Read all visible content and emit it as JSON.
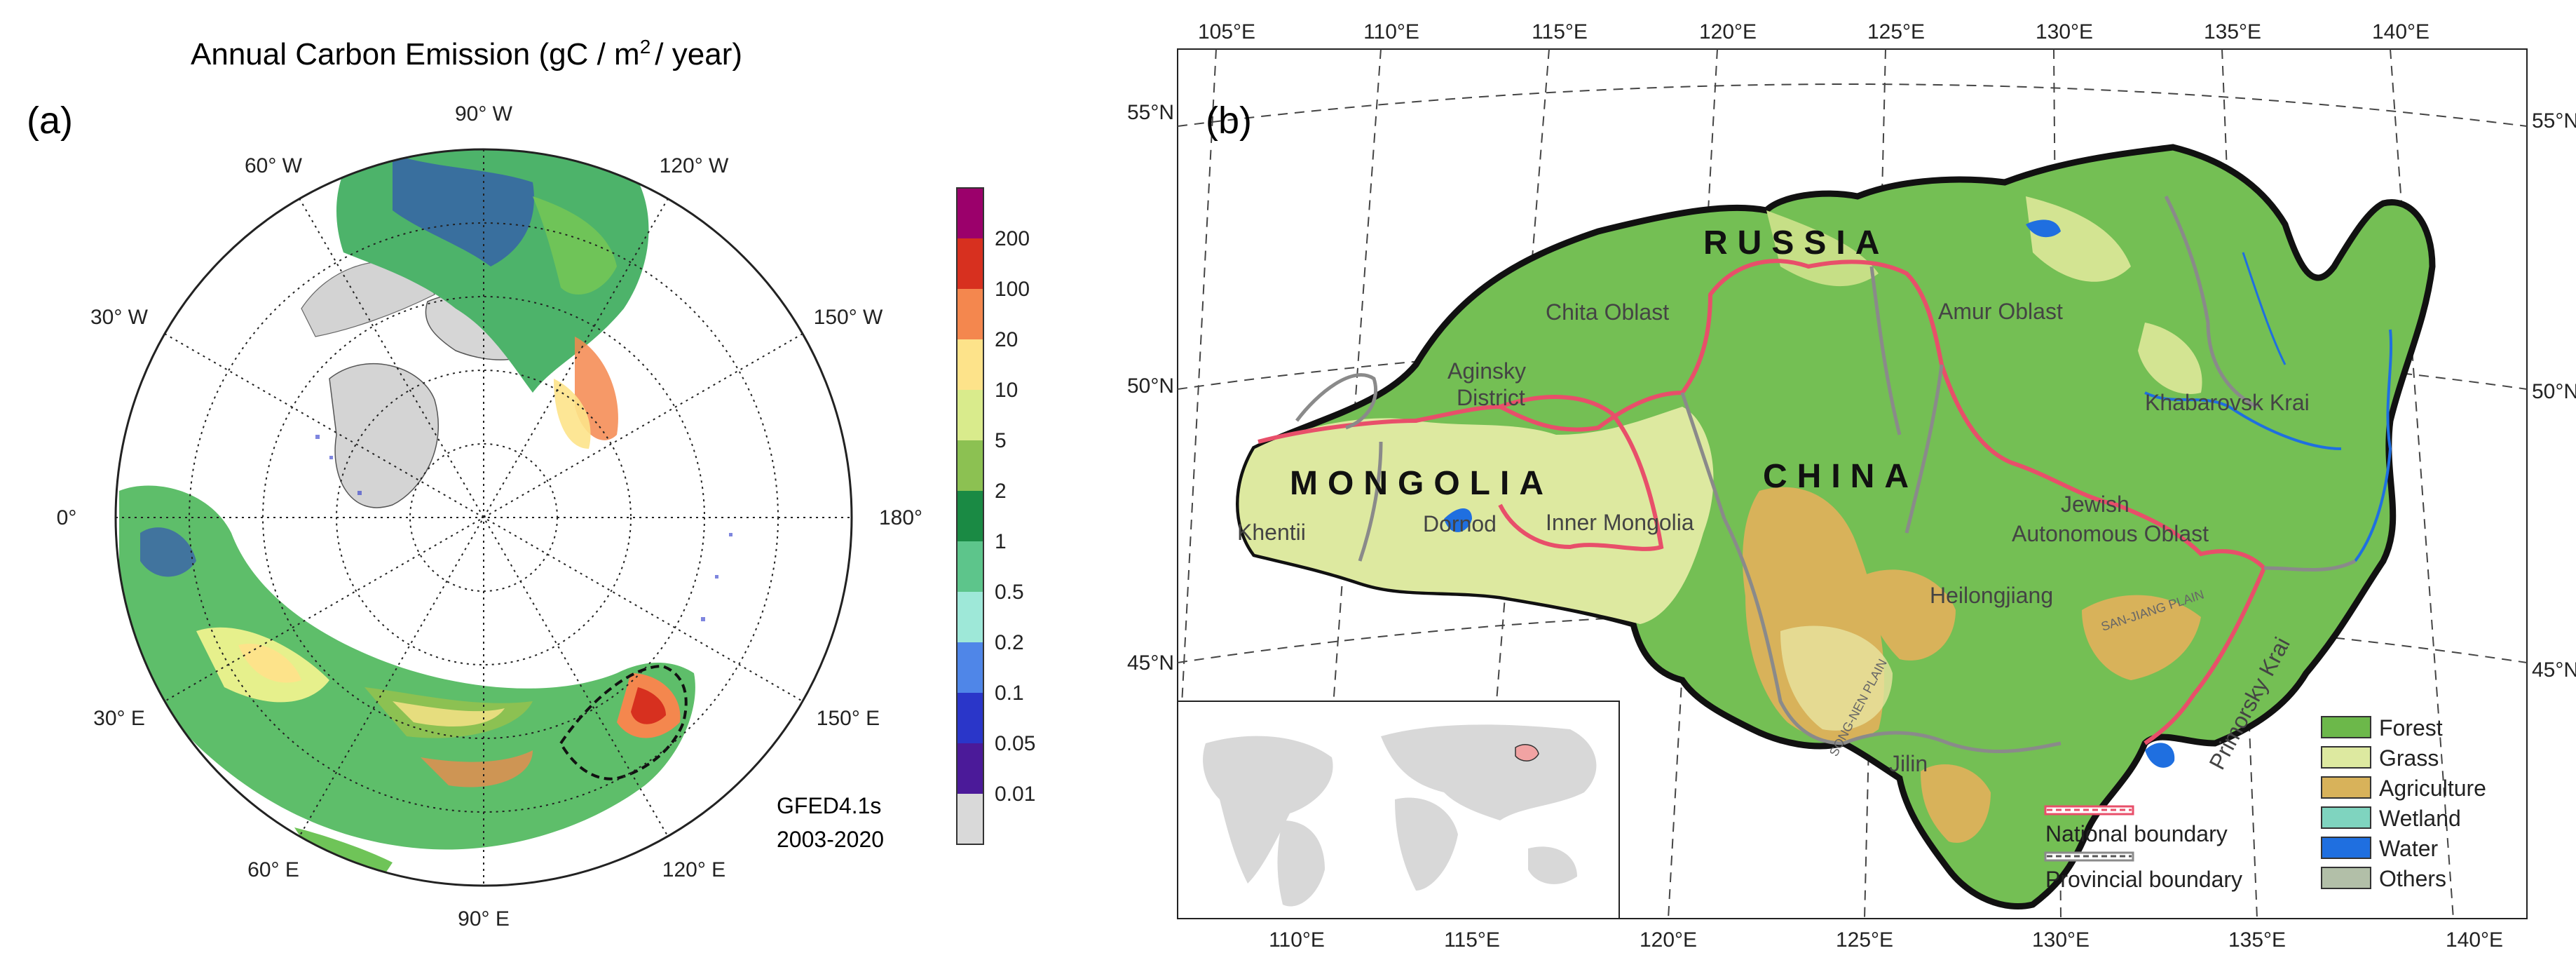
{
  "panel_a": {
    "label": "(a)",
    "title": "Annual Carbon Emission (gC / m",
    "title_sup": "2",
    "title_end": "/ year)",
    "dataset": "GFED4.1s",
    "period": "2003-2020",
    "lon_labels": [
      "90° W",
      "120° W",
      "150° W",
      "180°",
      "150° E",
      "120° E",
      "90° E",
      "60° E",
      "30° E",
      "0°",
      "30° W",
      "60° W"
    ],
    "colorbar": {
      "labels": [
        "200",
        "100",
        "20",
        "10",
        "5",
        "2",
        "1",
        "0.5",
        "0.2",
        "0.1",
        "0.05",
        "0.01"
      ],
      "colors": [
        "#9b006b",
        "#d7301f",
        "#f4874e",
        "#fde38a",
        "#d9eb8c",
        "#8cc152",
        "#1a8a44",
        "#5dc58b",
        "#9ee8d8",
        "#4f86e8",
        "#2a36c9",
        "#4b1a99",
        "#d9d9d9"
      ]
    }
  },
  "panel_b": {
    "label": "(b)",
    "top_lon_labels": [
      "105°E",
      "110°E",
      "115°E",
      "120°E",
      "125°E",
      "130°E",
      "135°E",
      "140°E"
    ],
    "bottom_lon_labels": [
      "110°E",
      "115°E",
      "120°E",
      "125°E",
      "130°E",
      "135°E",
      "140°E"
    ],
    "left_lat_labels": [
      "55°N",
      "50°N",
      "45°N"
    ],
    "right_lat_labels": [
      "55°N",
      "50°N",
      "45°N"
    ],
    "countries": [
      "RUSSIA",
      "MONGOLIA",
      "CHINA"
    ],
    "regions": [
      "Chita Oblast",
      "Aginsky",
      "District",
      "Amur Oblast",
      "Khabarovsk Krai",
      "Khentii",
      "Dornod",
      "Inner Mongolia",
      "Jewish",
      "Autonomous Oblast",
      "Heilongjiang",
      "Jilin",
      "Primorsky Krai"
    ],
    "plains": [
      "SONG-NEN PLAIN",
      "SAN-JIANG PLAIN"
    ],
    "legend": [
      {
        "label": "Forest",
        "color": "#6cb84a"
      },
      {
        "label": "Grass",
        "color": "#dde9a0"
      },
      {
        "label": "Agriculture",
        "color": "#d8b25a"
      },
      {
        "label": "Wetland",
        "color": "#7fd4bf"
      },
      {
        "label": "Water",
        "color": "#1f6fe0"
      },
      {
        "label": "Others",
        "color": "#b2bfa8"
      }
    ],
    "boundary_legend": [
      {
        "label": "National boundary",
        "color": "#e84f6a"
      },
      {
        "label": "Provincial boundary",
        "color": "#8a8a8a"
      }
    ]
  }
}
